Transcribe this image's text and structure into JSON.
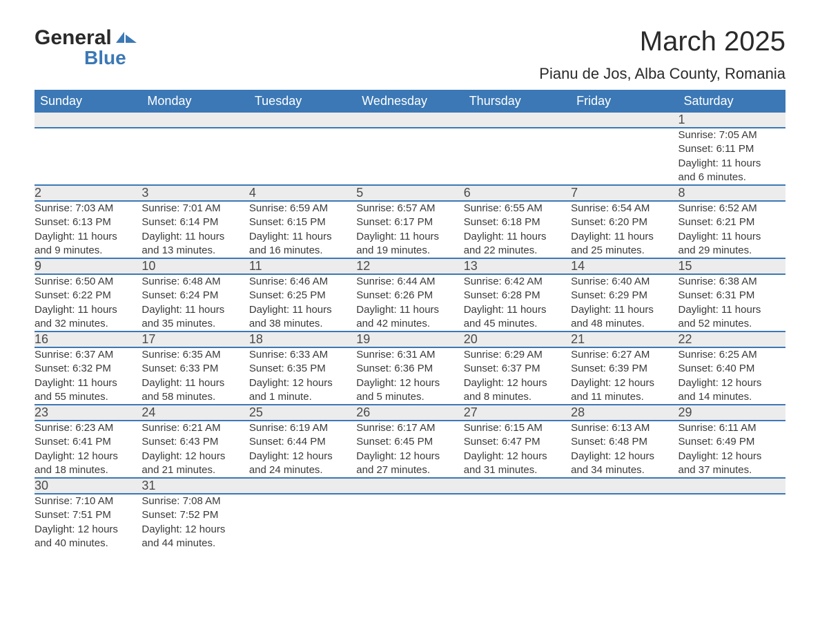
{
  "logo": {
    "top": "General",
    "bottom": "Blue",
    "mark_color": "#3b78b5"
  },
  "title": {
    "month": "March 2025",
    "location": "Pianu de Jos, Alba County, Romania"
  },
  "colors": {
    "header_bg": "#3b78b5",
    "header_text": "#ffffff",
    "daynum_bg": "#ececec",
    "row_divider": "#3b78b5",
    "body_text": "#3a3a3a"
  },
  "fonts": {
    "family": "Arial",
    "title_size_pt": 30,
    "header_size_pt": 14,
    "body_size_pt": 11
  },
  "day_headers": [
    "Sunday",
    "Monday",
    "Tuesday",
    "Wednesday",
    "Thursday",
    "Friday",
    "Saturday"
  ],
  "weeks": [
    [
      null,
      null,
      null,
      null,
      null,
      null,
      {
        "n": "1",
        "sr": "Sunrise: 7:05 AM",
        "ss": "Sunset: 6:11 PM",
        "d1": "Daylight: 11 hours",
        "d2": "and 6 minutes."
      }
    ],
    [
      {
        "n": "2",
        "sr": "Sunrise: 7:03 AM",
        "ss": "Sunset: 6:13 PM",
        "d1": "Daylight: 11 hours",
        "d2": "and 9 minutes."
      },
      {
        "n": "3",
        "sr": "Sunrise: 7:01 AM",
        "ss": "Sunset: 6:14 PM",
        "d1": "Daylight: 11 hours",
        "d2": "and 13 minutes."
      },
      {
        "n": "4",
        "sr": "Sunrise: 6:59 AM",
        "ss": "Sunset: 6:15 PM",
        "d1": "Daylight: 11 hours",
        "d2": "and 16 minutes."
      },
      {
        "n": "5",
        "sr": "Sunrise: 6:57 AM",
        "ss": "Sunset: 6:17 PM",
        "d1": "Daylight: 11 hours",
        "d2": "and 19 minutes."
      },
      {
        "n": "6",
        "sr": "Sunrise: 6:55 AM",
        "ss": "Sunset: 6:18 PM",
        "d1": "Daylight: 11 hours",
        "d2": "and 22 minutes."
      },
      {
        "n": "7",
        "sr": "Sunrise: 6:54 AM",
        "ss": "Sunset: 6:20 PM",
        "d1": "Daylight: 11 hours",
        "d2": "and 25 minutes."
      },
      {
        "n": "8",
        "sr": "Sunrise: 6:52 AM",
        "ss": "Sunset: 6:21 PM",
        "d1": "Daylight: 11 hours",
        "d2": "and 29 minutes."
      }
    ],
    [
      {
        "n": "9",
        "sr": "Sunrise: 6:50 AM",
        "ss": "Sunset: 6:22 PM",
        "d1": "Daylight: 11 hours",
        "d2": "and 32 minutes."
      },
      {
        "n": "10",
        "sr": "Sunrise: 6:48 AM",
        "ss": "Sunset: 6:24 PM",
        "d1": "Daylight: 11 hours",
        "d2": "and 35 minutes."
      },
      {
        "n": "11",
        "sr": "Sunrise: 6:46 AM",
        "ss": "Sunset: 6:25 PM",
        "d1": "Daylight: 11 hours",
        "d2": "and 38 minutes."
      },
      {
        "n": "12",
        "sr": "Sunrise: 6:44 AM",
        "ss": "Sunset: 6:26 PM",
        "d1": "Daylight: 11 hours",
        "d2": "and 42 minutes."
      },
      {
        "n": "13",
        "sr": "Sunrise: 6:42 AM",
        "ss": "Sunset: 6:28 PM",
        "d1": "Daylight: 11 hours",
        "d2": "and 45 minutes."
      },
      {
        "n": "14",
        "sr": "Sunrise: 6:40 AM",
        "ss": "Sunset: 6:29 PM",
        "d1": "Daylight: 11 hours",
        "d2": "and 48 minutes."
      },
      {
        "n": "15",
        "sr": "Sunrise: 6:38 AM",
        "ss": "Sunset: 6:31 PM",
        "d1": "Daylight: 11 hours",
        "d2": "and 52 minutes."
      }
    ],
    [
      {
        "n": "16",
        "sr": "Sunrise: 6:37 AM",
        "ss": "Sunset: 6:32 PM",
        "d1": "Daylight: 11 hours",
        "d2": "and 55 minutes."
      },
      {
        "n": "17",
        "sr": "Sunrise: 6:35 AM",
        "ss": "Sunset: 6:33 PM",
        "d1": "Daylight: 11 hours",
        "d2": "and 58 minutes."
      },
      {
        "n": "18",
        "sr": "Sunrise: 6:33 AM",
        "ss": "Sunset: 6:35 PM",
        "d1": "Daylight: 12 hours",
        "d2": "and 1 minute."
      },
      {
        "n": "19",
        "sr": "Sunrise: 6:31 AM",
        "ss": "Sunset: 6:36 PM",
        "d1": "Daylight: 12 hours",
        "d2": "and 5 minutes."
      },
      {
        "n": "20",
        "sr": "Sunrise: 6:29 AM",
        "ss": "Sunset: 6:37 PM",
        "d1": "Daylight: 12 hours",
        "d2": "and 8 minutes."
      },
      {
        "n": "21",
        "sr": "Sunrise: 6:27 AM",
        "ss": "Sunset: 6:39 PM",
        "d1": "Daylight: 12 hours",
        "d2": "and 11 minutes."
      },
      {
        "n": "22",
        "sr": "Sunrise: 6:25 AM",
        "ss": "Sunset: 6:40 PM",
        "d1": "Daylight: 12 hours",
        "d2": "and 14 minutes."
      }
    ],
    [
      {
        "n": "23",
        "sr": "Sunrise: 6:23 AM",
        "ss": "Sunset: 6:41 PM",
        "d1": "Daylight: 12 hours",
        "d2": "and 18 minutes."
      },
      {
        "n": "24",
        "sr": "Sunrise: 6:21 AM",
        "ss": "Sunset: 6:43 PM",
        "d1": "Daylight: 12 hours",
        "d2": "and 21 minutes."
      },
      {
        "n": "25",
        "sr": "Sunrise: 6:19 AM",
        "ss": "Sunset: 6:44 PM",
        "d1": "Daylight: 12 hours",
        "d2": "and 24 minutes."
      },
      {
        "n": "26",
        "sr": "Sunrise: 6:17 AM",
        "ss": "Sunset: 6:45 PM",
        "d1": "Daylight: 12 hours",
        "d2": "and 27 minutes."
      },
      {
        "n": "27",
        "sr": "Sunrise: 6:15 AM",
        "ss": "Sunset: 6:47 PM",
        "d1": "Daylight: 12 hours",
        "d2": "and 31 minutes."
      },
      {
        "n": "28",
        "sr": "Sunrise: 6:13 AM",
        "ss": "Sunset: 6:48 PM",
        "d1": "Daylight: 12 hours",
        "d2": "and 34 minutes."
      },
      {
        "n": "29",
        "sr": "Sunrise: 6:11 AM",
        "ss": "Sunset: 6:49 PM",
        "d1": "Daylight: 12 hours",
        "d2": "and 37 minutes."
      }
    ],
    [
      {
        "n": "30",
        "sr": "Sunrise: 7:10 AM",
        "ss": "Sunset: 7:51 PM",
        "d1": "Daylight: 12 hours",
        "d2": "and 40 minutes."
      },
      {
        "n": "31",
        "sr": "Sunrise: 7:08 AM",
        "ss": "Sunset: 7:52 PM",
        "d1": "Daylight: 12 hours",
        "d2": "and 44 minutes."
      },
      null,
      null,
      null,
      null,
      null
    ]
  ]
}
